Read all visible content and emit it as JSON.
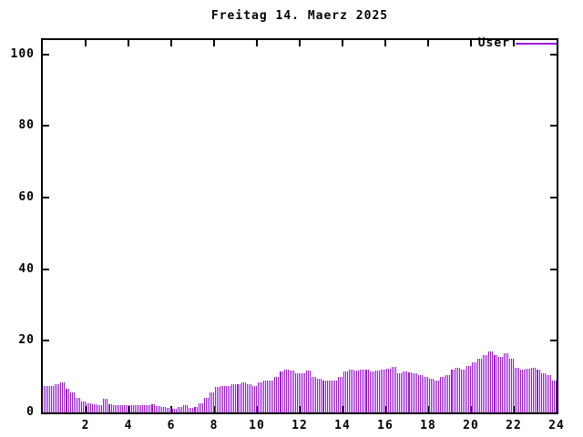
{
  "title": "Freitag 14. Maerz 2025",
  "legend": {
    "label": "User"
  },
  "colors": {
    "series": "#9911dd",
    "axis": "#000000",
    "background": "#ffffff",
    "text": "#000000"
  },
  "chart_data": {
    "type": "bar",
    "subtype": "impulses",
    "title": "Freitag 14. Maerz 2025",
    "xlabel": "",
    "ylabel": "",
    "xlim": [
      0,
      24
    ],
    "ylim": [
      0,
      104
    ],
    "x_ticks": [
      2,
      4,
      6,
      8,
      10,
      12,
      14,
      16,
      18,
      20,
      22,
      24
    ],
    "y_ticks": [
      0,
      20,
      40,
      60,
      80,
      100
    ],
    "grid": false,
    "legend_position": "top-right",
    "series": [
      {
        "name": "User",
        "color": "#9911dd",
        "x_start_hour": 0,
        "interval_minutes": 15,
        "values": [
          7.5,
          7.5,
          7.8,
          8.5,
          6.5,
          5.5,
          4.0,
          3.0,
          2.5,
          2.2,
          2.0,
          3.8,
          2.2,
          2.0,
          2.0,
          2.0,
          2.0,
          2.0,
          2.0,
          2.0,
          2.2,
          1.8,
          1.5,
          1.2,
          1.0,
          1.5,
          2.0,
          1.2,
          1.5,
          2.5,
          4.0,
          5.5,
          7.0,
          7.5,
          7.5,
          7.8,
          8.0,
          8.5,
          8.0,
          7.5,
          8.5,
          9.0,
          9.0,
          10.0,
          11.5,
          12.0,
          11.8,
          11.0,
          11.0,
          11.8,
          10.0,
          9.5,
          9.0,
          8.8,
          9.0,
          10.0,
          11.5,
          12.0,
          11.8,
          12.0,
          12.0,
          11.5,
          11.8,
          12.0,
          12.2,
          12.7,
          11.0,
          11.5,
          11.2,
          11.0,
          10.5,
          10.0,
          9.5,
          9.0,
          10.0,
          10.5,
          12.0,
          12.5,
          12.0,
          13.0,
          14.0,
          15.0,
          16.0,
          17.0,
          16.0,
          15.5,
          16.5,
          15.0,
          12.5,
          12.0,
          12.2,
          12.5,
          12.0,
          11.0,
          10.5,
          9.0
        ]
      }
    ]
  }
}
